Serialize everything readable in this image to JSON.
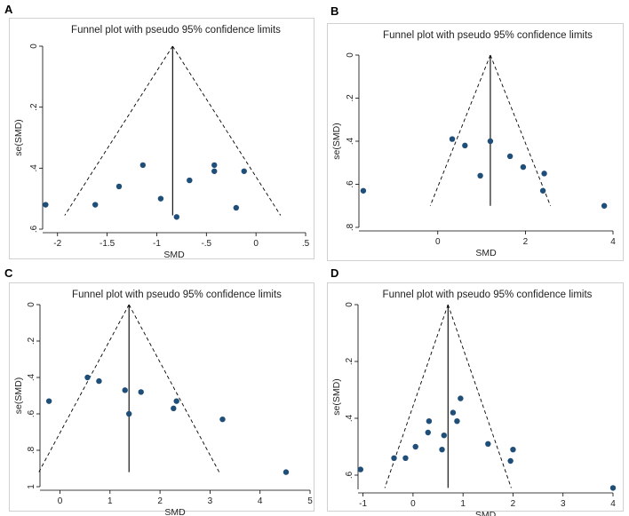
{
  "figure": {
    "panel_labels": [
      "A",
      "B",
      "C",
      "D"
    ],
    "colors": {
      "point": "#1f4e79",
      "line": "#000000",
      "frame": "#d0d0d0",
      "background": "#ffffff"
    }
  },
  "chart_data": [
    {
      "type": "scatter",
      "title": "Funnel plot with pseudo 95% confidence limits",
      "xlabel": "SMD",
      "ylabel": "se(SMD)",
      "xlim": [
        -2.15,
        0.5
      ],
      "ylim": [
        0,
        0.6
      ],
      "y_reversed": true,
      "grid": false,
      "x_ticks": [
        -2,
        -1.5,
        -1,
        -0.5,
        0,
        0.5
      ],
      "x_tick_labels": [
        "-2",
        "-1.5",
        "-1",
        "-.5",
        "0",
        ".5"
      ],
      "y_ticks": [
        0,
        0.2,
        0.4,
        0.6
      ],
      "y_tick_labels": [
        "0",
        ".2",
        ".4",
        ".6"
      ],
      "pooled_smd": -0.84,
      "funnel_base_se": 0.555,
      "points": [
        {
          "x": -2.12,
          "y": 0.52
        },
        {
          "x": -1.62,
          "y": 0.52
        },
        {
          "x": -1.38,
          "y": 0.46
        },
        {
          "x": -1.14,
          "y": 0.39
        },
        {
          "x": -0.96,
          "y": 0.5
        },
        {
          "x": -0.8,
          "y": 0.56
        },
        {
          "x": -0.67,
          "y": 0.44
        },
        {
          "x": -0.42,
          "y": 0.39
        },
        {
          "x": -0.42,
          "y": 0.41
        },
        {
          "x": -0.2,
          "y": 0.53
        },
        {
          "x": -0.12,
          "y": 0.41
        }
      ]
    },
    {
      "type": "scatter",
      "title": "Funnel plot with pseudo 95% confidence limits",
      "xlabel": "SMD",
      "ylabel": "se(SMD)",
      "xlim": [
        -1.8,
        4.0
      ],
      "ylim": [
        0,
        0.8
      ],
      "y_reversed": true,
      "grid": false,
      "x_ticks": [
        0,
        2,
        4
      ],
      "x_tick_labels": [
        "0",
        "2",
        "4"
      ],
      "y_ticks": [
        0,
        0.2,
        0.4,
        0.6,
        0.8
      ],
      "y_tick_labels": [
        "0",
        ".2",
        ".4",
        ".6",
        ".8"
      ],
      "pooled_smd": 1.2,
      "funnel_base_se": 0.7,
      "points": [
        {
          "x": -1.7,
          "y": 0.63
        },
        {
          "x": 0.33,
          "y": 0.39
        },
        {
          "x": 0.62,
          "y": 0.42
        },
        {
          "x": 0.97,
          "y": 0.56
        },
        {
          "x": 1.2,
          "y": 0.4
        },
        {
          "x": 1.65,
          "y": 0.47
        },
        {
          "x": 1.95,
          "y": 0.52
        },
        {
          "x": 2.43,
          "y": 0.55
        },
        {
          "x": 2.4,
          "y": 0.63
        },
        {
          "x": 3.8,
          "y": 0.7
        }
      ]
    },
    {
      "type": "scatter",
      "title": "Funnel plot with pseudo 95% confidence limits",
      "xlabel": "SMD",
      "ylabel": "se(SMD)",
      "xlim": [
        -0.4,
        5.0
      ],
      "ylim": [
        0,
        1.0
      ],
      "y_reversed": true,
      "grid": false,
      "x_ticks": [
        0,
        1,
        2,
        3,
        4,
        5
      ],
      "x_tick_labels": [
        "0",
        "1",
        "2",
        "3",
        "4",
        "5"
      ],
      "y_ticks": [
        0,
        0.2,
        0.4,
        0.6,
        0.8,
        1.0
      ],
      "y_tick_labels": [
        "0",
        ".2",
        ".4",
        ".6",
        ".8",
        "1"
      ],
      "pooled_smd": 1.38,
      "funnel_base_se": 0.92,
      "points": [
        {
          "x": -0.22,
          "y": 0.53
        },
        {
          "x": 0.55,
          "y": 0.4
        },
        {
          "x": 0.78,
          "y": 0.42
        },
        {
          "x": 1.3,
          "y": 0.47
        },
        {
          "x": 1.38,
          "y": 0.6
        },
        {
          "x": 1.62,
          "y": 0.48
        },
        {
          "x": 2.27,
          "y": 0.57
        },
        {
          "x": 2.33,
          "y": 0.53
        },
        {
          "x": 3.25,
          "y": 0.63
        },
        {
          "x": 4.52,
          "y": 0.92
        }
      ]
    },
    {
      "type": "scatter",
      "title": "Funnel plot with pseudo 95% confidence limits",
      "xlabel": "SMD",
      "ylabel": "se(SMD)",
      "xlim": [
        -1.1,
        4.0
      ],
      "ylim": [
        0,
        0.65
      ],
      "y_reversed": true,
      "grid": false,
      "x_ticks": [
        -1,
        0,
        1,
        2,
        3,
        4
      ],
      "x_tick_labels": [
        "-1",
        "0",
        "1",
        "2",
        "3",
        "4"
      ],
      "y_ticks": [
        0,
        0.2,
        0.4,
        0.6
      ],
      "y_tick_labels": [
        "0",
        ".2",
        ".4",
        ".6"
      ],
      "pooled_smd": 0.7,
      "funnel_base_se": 0.645,
      "points": [
        {
          "x": -1.05,
          "y": 0.58
        },
        {
          "x": -0.38,
          "y": 0.54
        },
        {
          "x": -0.15,
          "y": 0.54
        },
        {
          "x": 0.05,
          "y": 0.5
        },
        {
          "x": 0.3,
          "y": 0.45
        },
        {
          "x": 0.32,
          "y": 0.41
        },
        {
          "x": 0.58,
          "y": 0.51
        },
        {
          "x": 0.62,
          "y": 0.46
        },
        {
          "x": 0.8,
          "y": 0.38
        },
        {
          "x": 0.88,
          "y": 0.41
        },
        {
          "x": 0.95,
          "y": 0.33
        },
        {
          "x": 1.5,
          "y": 0.49
        },
        {
          "x": 1.95,
          "y": 0.55
        },
        {
          "x": 2.0,
          "y": 0.51
        },
        {
          "x": 4.0,
          "y": 0.645
        }
      ]
    }
  ]
}
